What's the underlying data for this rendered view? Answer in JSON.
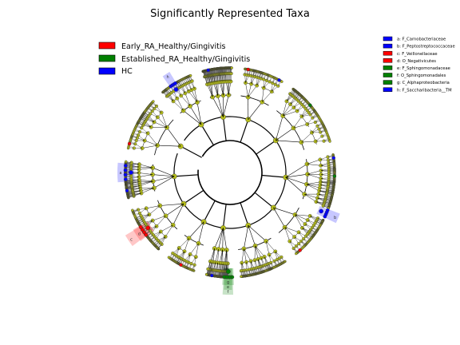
{
  "chart_data": {
    "type": "cladogram",
    "title": "Significantly Represented Taxa",
    "groups": [
      {
        "name": "Early_RA_Healthy/Gingivitis",
        "color": "#ff0000"
      },
      {
        "name": "Established_RA_Healthy/Gingivitis",
        "color": "#008000"
      },
      {
        "name": "HC",
        "color": "#0000ff"
      }
    ],
    "node_color": "#b5bd1a",
    "clade_legend": [
      {
        "letter": "a",
        "label": "a: F_Carnobacteriaceae",
        "group": "HC"
      },
      {
        "letter": "b",
        "label": "b: F_Peptostreptococcaceae",
        "group": "HC"
      },
      {
        "letter": "c",
        "label": "c: F_Veillonellaceae",
        "group": "Early_RA_Healthy/Gingivitis"
      },
      {
        "letter": "d",
        "label": "d: O_Negativicutes",
        "group": "Early_RA_Healthy/Gingivitis"
      },
      {
        "letter": "e",
        "label": "e: F_Sphingomonadaceae",
        "group": "Established_RA_Healthy/Gingivitis"
      },
      {
        "letter": "f",
        "label": "f: O_Sphingomonadales",
        "group": "Established_RA_Healthy/Gingivitis"
      },
      {
        "letter": "g",
        "label": "g: C_Alphaproteobacteria",
        "group": "Established_RA_Healthy/Gingivitis"
      },
      {
        "letter": "h",
        "label": "h: F_Saccharibacteria__TM",
        "group": "HC"
      }
    ],
    "highlighted_clades": [
      {
        "letter": "a",
        "group": "HC",
        "angle_deg": 180,
        "span_deg": 10
      },
      {
        "letter": "b",
        "group": "HC",
        "angle_deg": 23,
        "span_deg": 5
      },
      {
        "letter": "c",
        "group": "Early_RA_Healthy/Gingivitis",
        "angle_deg": 146,
        "span_deg": 6
      },
      {
        "letter": "d",
        "group": "Early_RA_Healthy/Gingivitis",
        "angle_deg": 146,
        "span_deg": 7
      },
      {
        "letter": "e",
        "group": "Established_RA_Healthy/Gingivitis",
        "angle_deg": 91,
        "span_deg": 4
      },
      {
        "letter": "f",
        "group": "Established_RA_Healthy/Gingivitis",
        "angle_deg": 91,
        "span_deg": 5
      },
      {
        "letter": "g",
        "group": "Established_RA_Healthy/Gingivitis",
        "angle_deg": 91,
        "span_deg": 6
      },
      {
        "letter": "h",
        "group": "HC",
        "angle_deg": 237,
        "span_deg": 4
      }
    ]
  }
}
